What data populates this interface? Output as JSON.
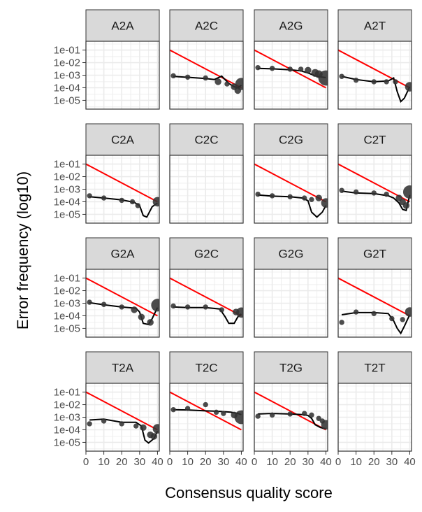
{
  "chart_data": {
    "type": "scatter",
    "xlabel": "Consensus quality score",
    "ylabel": "Error frequency (log10)",
    "y_scale": "log10",
    "xlim": [
      0,
      41
    ],
    "ylim": [
      2e-06,
      0.5
    ],
    "x_ticks": [
      0,
      10,
      20,
      30,
      40
    ],
    "x_tick_labels": [
      "0",
      "10",
      "20",
      "30",
      "40"
    ],
    "y_ticks": [
      0.1,
      0.01,
      0.001,
      0.0001,
      1e-05
    ],
    "y_tick_labels": [
      "1e-01",
      "1e-02",
      "1e-03",
      "1e-04",
      "1e-05"
    ],
    "grid": true,
    "colors": {
      "panel_border": "#333333",
      "strip_fill": "#d9d9d9",
      "grid": "#ebebeb",
      "points": "#333333",
      "smooth": "#000000",
      "expected": "#ff0000"
    },
    "expected_line": {
      "y_at_x0": 0.1,
      "y_at_x40": 0.0001
    },
    "panels": [
      {
        "label": "A2A",
        "points": [],
        "smooth": []
      },
      {
        "label": "A2C",
        "points": [
          [
            2,
            0.0009,
            1
          ],
          [
            10,
            0.0007,
            1
          ],
          [
            20,
            0.0006,
            1
          ],
          [
            27,
            0.0003,
            2
          ],
          [
            32,
            0.0002,
            1
          ],
          [
            36,
            0.00012,
            2
          ],
          [
            38,
            6e-05,
            2
          ],
          [
            40,
            0.0002,
            9
          ]
        ],
        "smooth": [
          [
            2,
            0.0008
          ],
          [
            10,
            0.00068
          ],
          [
            20,
            0.00055
          ],
          [
            25,
            0.00045
          ],
          [
            29,
            0.00085
          ],
          [
            33,
            0.00022
          ],
          [
            36,
            0.00012
          ],
          [
            38,
            0.0001
          ],
          [
            40,
            0.00016
          ]
        ]
      },
      {
        "label": "A2G",
        "points": [
          [
            2,
            0.004,
            1
          ],
          [
            10,
            0.0035,
            1
          ],
          [
            20,
            0.003,
            1
          ],
          [
            26,
            0.003,
            1
          ],
          [
            30,
            0.0025,
            2
          ],
          [
            34,
            0.0015,
            3
          ],
          [
            36,
            0.0012,
            3
          ],
          [
            40,
            0.0006,
            15
          ]
        ],
        "smooth": [
          [
            2,
            0.0035
          ],
          [
            10,
            0.0032
          ],
          [
            20,
            0.0027
          ],
          [
            26,
            0.0022
          ],
          [
            30,
            0.0015
          ],
          [
            34,
            0.0009
          ],
          [
            38,
            0.0007
          ],
          [
            40,
            0.00065
          ]
        ]
      },
      {
        "label": "A2T",
        "points": [
          [
            2,
            0.0008,
            1
          ],
          [
            10,
            0.0004,
            1
          ],
          [
            20,
            0.0003,
            1
          ],
          [
            27,
            0.0003,
            1
          ],
          [
            32,
            0.0003,
            1
          ],
          [
            40,
            0.00012,
            5
          ]
        ],
        "smooth": [
          [
            2,
            0.0008
          ],
          [
            10,
            0.00045
          ],
          [
            20,
            0.0003
          ],
          [
            28,
            0.00035
          ],
          [
            31,
            0.0006
          ],
          [
            33,
            5e-05
          ],
          [
            35,
            8e-06
          ],
          [
            37,
            1.5e-05
          ],
          [
            40,
            0.00012
          ]
        ]
      },
      {
        "label": "C2A",
        "points": [
          [
            2,
            0.0003,
            1
          ],
          [
            10,
            0.0002,
            1
          ],
          [
            20,
            0.00013,
            1
          ],
          [
            26,
            0.0001,
            1
          ],
          [
            29,
            5e-05,
            1
          ],
          [
            40,
            0.0001,
            5
          ]
        ],
        "smooth": [
          [
            2,
            0.00025
          ],
          [
            10,
            0.0002
          ],
          [
            20,
            0.00014
          ],
          [
            27,
            9e-05
          ],
          [
            30,
            5e-05
          ],
          [
            32,
            8e-06
          ],
          [
            34,
            6e-06
          ],
          [
            37,
            4e-05
          ],
          [
            40,
            8e-05
          ]
        ]
      },
      {
        "label": "C2C",
        "points": [],
        "smooth": []
      },
      {
        "label": "C2G",
        "points": [
          [
            2,
            0.0004,
            1
          ],
          [
            10,
            0.0003,
            1
          ],
          [
            20,
            0.00025,
            1
          ],
          [
            28,
            0.0002,
            1
          ],
          [
            32,
            0.00015,
            1
          ],
          [
            36,
            0.0002,
            2
          ],
          [
            40,
            8e-05,
            5
          ]
        ],
        "smooth": [
          [
            2,
            0.00035
          ],
          [
            10,
            0.00028
          ],
          [
            20,
            0.00025
          ],
          [
            27,
            0.0002
          ],
          [
            30,
            0.00012
          ],
          [
            32,
            1.5e-05
          ],
          [
            35,
            6e-06
          ],
          [
            38,
            1.5e-05
          ],
          [
            40,
            5e-05
          ]
        ]
      },
      {
        "label": "C2T",
        "points": [
          [
            2,
            0.0008,
            1
          ],
          [
            10,
            0.0006,
            1
          ],
          [
            20,
            0.0005,
            1
          ],
          [
            27,
            0.0004,
            1
          ],
          [
            34,
            0.0002,
            2
          ],
          [
            36,
            0.0001,
            2
          ],
          [
            38,
            5e-05,
            2
          ],
          [
            40,
            0.0006,
            11
          ]
        ],
        "smooth": [
          [
            2,
            0.0007
          ],
          [
            10,
            0.0005
          ],
          [
            20,
            0.00045
          ],
          [
            28,
            0.0003
          ],
          [
            31,
            0.0002
          ],
          [
            34,
            8e-05
          ],
          [
            36,
            2.5e-05
          ],
          [
            38,
            2e-05
          ],
          [
            40,
            0.00035
          ]
        ]
      },
      {
        "label": "G2A",
        "points": [
          [
            2,
            0.0012,
            1
          ],
          [
            10,
            0.0008,
            1
          ],
          [
            20,
            0.0005,
            1
          ],
          [
            27,
            0.0003,
            2
          ],
          [
            31,
            8e-05,
            2
          ],
          [
            36,
            3e-05,
            2
          ],
          [
            40,
            0.0007,
            10
          ]
        ],
        "smooth": [
          [
            2,
            0.0011
          ],
          [
            10,
            0.00075
          ],
          [
            20,
            0.0005
          ],
          [
            28,
            0.0004
          ],
          [
            30,
            0.0002
          ],
          [
            32,
            2.5e-05
          ],
          [
            35,
            2e-05
          ],
          [
            37,
            6e-05
          ],
          [
            40,
            0.00045
          ]
        ]
      },
      {
        "label": "G2C",
        "points": [
          [
            2,
            0.0006,
            1
          ],
          [
            10,
            0.0005,
            1
          ],
          [
            20,
            0.0005,
            1
          ],
          [
            29,
            0.0003,
            1
          ],
          [
            37,
            0.0002,
            2
          ],
          [
            40,
            0.00018,
            6
          ]
        ],
        "smooth": [
          [
            2,
            0.0005
          ],
          [
            10,
            0.00045
          ],
          [
            20,
            0.00045
          ],
          [
            28,
            0.00035
          ],
          [
            31,
            8e-05
          ],
          [
            33,
            2.5e-05
          ],
          [
            36,
            2.5e-05
          ],
          [
            38,
            8e-05
          ],
          [
            40,
            0.00014
          ]
        ]
      },
      {
        "label": "G2G",
        "points": [],
        "smooth": []
      },
      {
        "label": "G2T",
        "points": [
          [
            2,
            3e-05,
            1
          ],
          [
            10,
            0.0002,
            1
          ],
          [
            20,
            0.00015,
            1
          ],
          [
            30,
            6e-05,
            1
          ],
          [
            36,
            5e-05,
            1
          ],
          [
            40,
            0.0002,
            5
          ]
        ],
        "smooth": [
          [
            2,
            0.00012
          ],
          [
            10,
            0.00018
          ],
          [
            20,
            0.00018
          ],
          [
            28,
            0.00015
          ],
          [
            31,
            4e-05
          ],
          [
            33,
            1e-05
          ],
          [
            35,
            4e-06
          ],
          [
            37,
            1.5e-05
          ],
          [
            40,
            0.00012
          ]
        ]
      },
      {
        "label": "T2A",
        "points": [
          [
            2,
            0.0003,
            1
          ],
          [
            10,
            0.0005,
            1
          ],
          [
            20,
            0.0003,
            1
          ],
          [
            28,
            0.0002,
            1
          ],
          [
            32,
            0.00015,
            2
          ],
          [
            36,
            4e-05,
            2
          ],
          [
            38,
            3e-05,
            2
          ],
          [
            40,
            0.00012,
            5
          ]
        ],
        "smooth": [
          [
            2,
            0.0006
          ],
          [
            10,
            0.0007
          ],
          [
            20,
            0.0004
          ],
          [
            28,
            0.0004
          ],
          [
            31,
            0.0002
          ],
          [
            33,
            1.5e-05
          ],
          [
            35,
            9e-06
          ],
          [
            38,
            2e-05
          ],
          [
            40,
            8e-05
          ]
        ]
      },
      {
        "label": "T2C",
        "points": [
          [
            2,
            0.004,
            1
          ],
          [
            10,
            0.005,
            1
          ],
          [
            20,
            0.01,
            1
          ],
          [
            26,
            0.0025,
            1
          ],
          [
            30,
            0.002,
            1
          ],
          [
            36,
            0.0015,
            2
          ],
          [
            40,
            0.001,
            12
          ]
        ],
        "smooth": [
          [
            2,
            0.004
          ],
          [
            10,
            0.0038
          ],
          [
            20,
            0.0032
          ],
          [
            26,
            0.003
          ],
          [
            30,
            0.0028
          ],
          [
            34,
            0.0025
          ],
          [
            38,
            0.002
          ],
          [
            40,
            0.0016
          ]
        ]
      },
      {
        "label": "T2G",
        "points": [
          [
            2,
            0.0012,
            1
          ],
          [
            10,
            0.0015,
            1
          ],
          [
            20,
            0.0018,
            1
          ],
          [
            28,
            0.002,
            1
          ],
          [
            32,
            0.0015,
            1
          ],
          [
            36,
            0.0008,
            1
          ],
          [
            38,
            0.0005,
            1
          ],
          [
            40,
            0.00025,
            5
          ]
        ],
        "smooth": [
          [
            2,
            0.0018
          ],
          [
            10,
            0.002
          ],
          [
            20,
            0.0018
          ],
          [
            27,
            0.0016
          ],
          [
            30,
            0.0014
          ],
          [
            32,
            0.0008
          ],
          [
            34,
            0.00025
          ],
          [
            37,
            0.00015
          ],
          [
            40,
            0.00012
          ]
        ]
      },
      {
        "label": "T2T",
        "points": [],
        "smooth": []
      }
    ]
  }
}
